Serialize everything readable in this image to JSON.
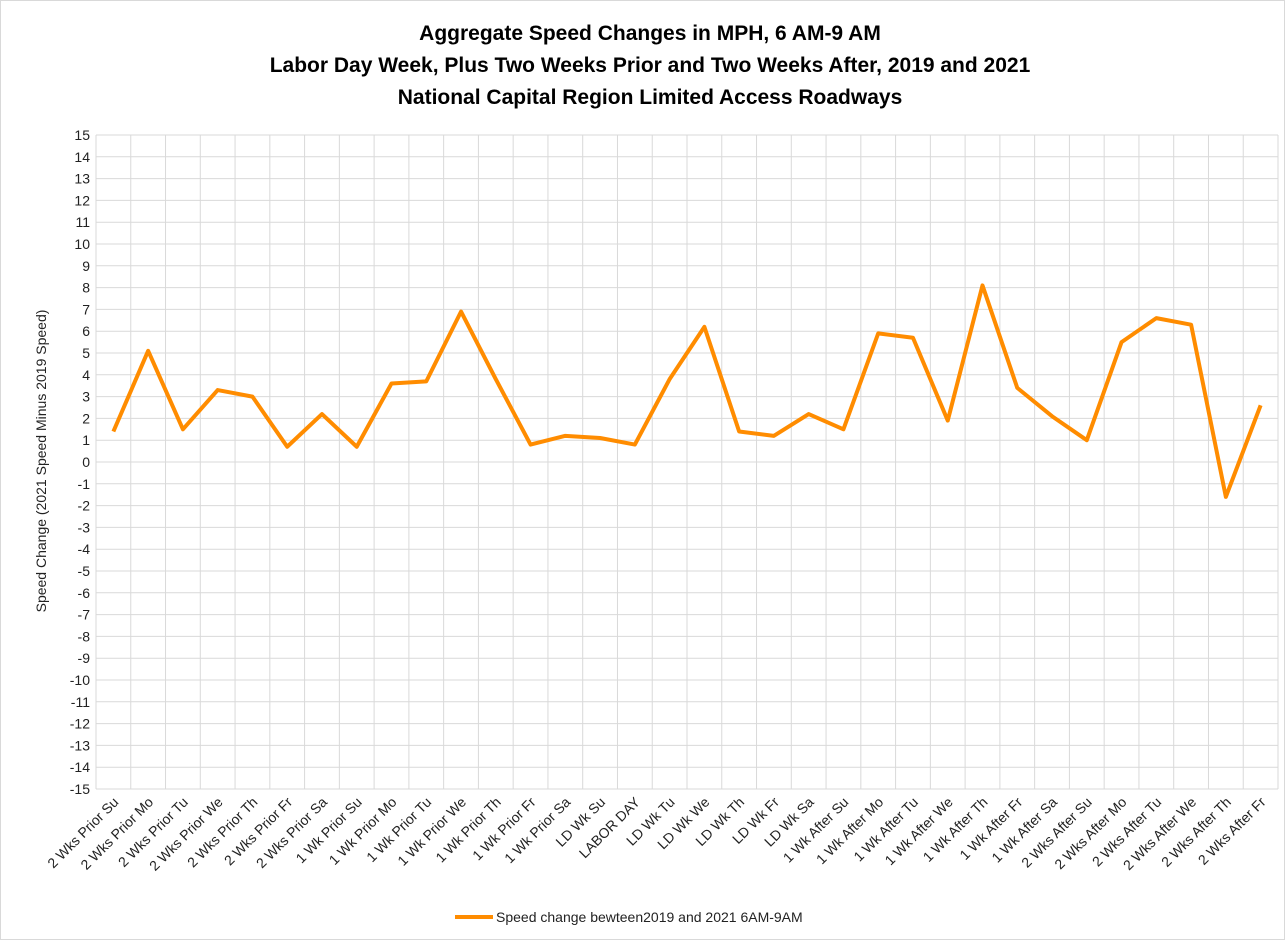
{
  "chart_data": {
    "type": "line",
    "title": [
      "Aggregate Speed Changes in MPH, 6 AM-9 AM",
      "Labor Day Week, Plus Two Weeks Prior and Two Weeks After, 2019 and 2021",
      "National Capital Region Limited Access Roadways"
    ],
    "y_label": "Speed Change (2021 Speed Minus 2019 Speed)",
    "categories": [
      "2 Wks Prior Su",
      "2 Wks Prior Mo",
      "2 Wks Prior Tu",
      "2 Wks Prior We",
      "2 Wks Prior Th",
      "2 Wks Prior Fr",
      "2 Wks Prior Sa",
      "1 Wk Prior Su",
      "1 Wk Prior Mo",
      "1 Wk Prior Tu",
      "1 Wk Prior We",
      "1 Wk Prior Th",
      "1 Wk Prior Fr",
      "1 Wk Prior Sa",
      "LD Wk Su",
      "LABOR DAY",
      "LD Wk Tu",
      "LD Wk We",
      "LD Wk Th",
      "LD Wk Fr",
      "LD Wk Sa",
      "1 Wk After Su",
      "1 Wk After Mo",
      "1 Wk After Tu",
      "1 Wk After We",
      "1 Wk After Th",
      "1 Wk After Fr",
      "1 Wk After Sa",
      "2 Wks After Su",
      "2 Wks After Mo",
      "2 Wks After Tu",
      "2 Wks After We",
      "2 Wks After Th",
      "2 Wks After Fr"
    ],
    "series": [
      {
        "name": "Speed change bewteen2019 and 2021 6AM-9AM",
        "color": "#ff8c00",
        "values": [
          1.4,
          5.1,
          1.5,
          3.3,
          3.0,
          0.7,
          2.2,
          0.7,
          3.6,
          3.7,
          6.9,
          3.8,
          0.8,
          1.2,
          1.1,
          0.8,
          3.8,
          6.2,
          1.4,
          1.2,
          2.2,
          1.5,
          5.9,
          5.7,
          1.9,
          8.1,
          3.4,
          2.1,
          1.0,
          5.5,
          6.6,
          6.3,
          -1.6,
          2.6
        ]
      }
    ],
    "ylim": [
      -15,
      15
    ],
    "yticks": [
      -15,
      -14,
      -13,
      -12,
      -11,
      -10,
      -9,
      -8,
      -7,
      -6,
      -5,
      -4,
      -3,
      -2,
      -1,
      0,
      1,
      2,
      3,
      4,
      5,
      6,
      7,
      8,
      9,
      10,
      11,
      12,
      13,
      14,
      15
    ],
    "grid": true,
    "legend": "bottom"
  }
}
